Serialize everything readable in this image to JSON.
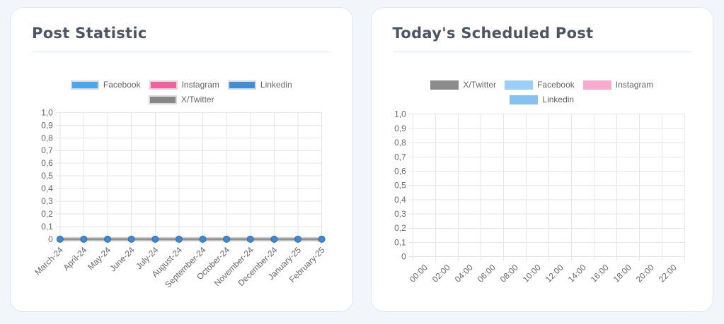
{
  "page": {
    "background": "#f2f6fa",
    "card_border": "#d8eafa",
    "divider_color": "#dbe3ec",
    "title_color": "#4b5563"
  },
  "cards": [
    {
      "title": "Post Statistic"
    },
    {
      "title": "Today's Scheduled Post"
    }
  ],
  "chart_data": [
    {
      "type": "line",
      "title": "Post Statistic",
      "categories": [
        "March-24",
        "April-24",
        "May-24",
        "June-24",
        "July-24",
        "August-24",
        "September-24",
        "October-24",
        "November-24",
        "December-24",
        "January-25",
        "February-25"
      ],
      "y_ticks": [
        "1,0",
        "0,9",
        "0,8",
        "0,7",
        "0,6",
        "0,5",
        "0,4",
        "0,3",
        "0,2",
        "0,1",
        "0"
      ],
      "ylim": [
        0,
        1
      ],
      "xlabel": "",
      "ylabel": "",
      "grid": true,
      "legend_position": "top",
      "series": [
        {
          "name": "Facebook",
          "color": "#48a7ee",
          "line_color": "#d0d0d0",
          "values": [
            0,
            0,
            0,
            0,
            0,
            0,
            0,
            0,
            0,
            0,
            0,
            0
          ]
        },
        {
          "name": "Instagram",
          "color": "#f2609f",
          "line_color": "#d0d0d0",
          "values": [
            0,
            0,
            0,
            0,
            0,
            0,
            0,
            0,
            0,
            0,
            0,
            0
          ]
        },
        {
          "name": "Linkedin",
          "color": "#3e8fd8",
          "line_color": "#d0d0d0",
          "values": [
            0,
            0,
            0,
            0,
            0,
            0,
            0,
            0,
            0,
            0,
            0,
            0
          ]
        },
        {
          "name": "X/Twitter",
          "color": "#878787",
          "line_color": "#949494",
          "values": [
            0,
            0,
            0,
            0,
            0,
            0,
            0,
            0,
            0,
            0,
            0,
            0
          ]
        }
      ],
      "point_color": "#3d89d3",
      "point_border_color": "#2d6cae",
      "tick_color": "#666666",
      "grid_color": "#e6e6e6"
    },
    {
      "type": "bar",
      "title": "Today's Scheduled Post",
      "categories": [
        "00:00",
        "02:00",
        "04:00",
        "06:00",
        "08:00",
        "10:00",
        "12:00",
        "14:00",
        "16:00",
        "18:00",
        "20:00",
        "22:00"
      ],
      "y_ticks": [
        "1,0",
        "0,9",
        "0,8",
        "0,7",
        "0,6",
        "0,5",
        "0,4",
        "0,3",
        "0,2",
        "0,1",
        "0"
      ],
      "ylim": [
        0,
        1
      ],
      "xlabel": "",
      "ylabel": "",
      "grid": true,
      "legend_position": "top",
      "series": [
        {
          "name": "X/Twitter",
          "color": "#8b8b8b",
          "values": [
            0,
            0,
            0,
            0,
            0,
            0,
            0,
            0,
            0,
            0,
            0,
            0
          ]
        },
        {
          "name": "Facebook",
          "color": "#9bcff7",
          "values": [
            0,
            0,
            0,
            0,
            0,
            0,
            0,
            0,
            0,
            0,
            0,
            0
          ]
        },
        {
          "name": "Instagram",
          "color": "#f9abcf",
          "values": [
            0,
            0,
            0,
            0,
            0,
            0,
            0,
            0,
            0,
            0,
            0,
            0
          ]
        },
        {
          "name": "Linkedin",
          "color": "#86c2f0",
          "values": [
            0,
            0,
            0,
            0,
            0,
            0,
            0,
            0,
            0,
            0,
            0,
            0
          ]
        }
      ],
      "tick_color": "#666666",
      "grid_color": "#e6e6e6"
    }
  ]
}
